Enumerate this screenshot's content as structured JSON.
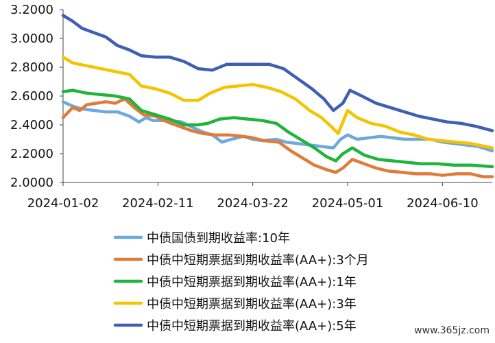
{
  "chart_data": {
    "type": "line",
    "ylim": [
      2.0,
      3.2
    ],
    "yticks": [
      "2.0000",
      "2.2000",
      "2.4000",
      "2.6000",
      "2.8000",
      "3.0000",
      "3.2000"
    ],
    "yticks_values": [
      2.0,
      2.2,
      2.4,
      2.6,
      2.8,
      3.0,
      3.2
    ],
    "x_range": [
      "2024-01-02",
      "2024-07-01"
    ],
    "xticks": [
      "2024-01-02",
      "2024-02-11",
      "2024-03-22",
      "2024-05-01",
      "2024-06-10"
    ],
    "grid": false,
    "legend_position": "bottom",
    "series": [
      {
        "name": "中债国债到期收益率:10年",
        "color": "#6fa8dc",
        "points": [
          [
            "2024-01-02",
            2.56
          ],
          [
            "2024-01-06",
            2.53
          ],
          [
            "2024-01-10",
            2.51
          ],
          [
            "2024-01-15",
            2.5
          ],
          [
            "2024-01-20",
            2.49
          ],
          [
            "2024-01-25",
            2.49
          ],
          [
            "2024-01-30",
            2.46
          ],
          [
            "2024-02-03",
            2.42
          ],
          [
            "2024-02-06",
            2.45
          ],
          [
            "2024-02-09",
            2.43
          ],
          [
            "2024-02-15",
            2.43
          ],
          [
            "2024-02-21",
            2.42
          ],
          [
            "2024-02-26",
            2.38
          ],
          [
            "2024-03-01",
            2.35
          ],
          [
            "2024-03-05",
            2.33
          ],
          [
            "2024-03-09",
            2.28
          ],
          [
            "2024-03-13",
            2.3
          ],
          [
            "2024-03-18",
            2.32
          ],
          [
            "2024-03-22",
            2.3
          ],
          [
            "2024-03-26",
            2.29
          ],
          [
            "2024-04-01",
            2.3
          ],
          [
            "2024-04-05",
            2.28
          ],
          [
            "2024-04-10",
            2.27
          ],
          [
            "2024-04-15",
            2.26
          ],
          [
            "2024-04-20",
            2.25
          ],
          [
            "2024-04-25",
            2.24
          ],
          [
            "2024-04-28",
            2.3
          ],
          [
            "2024-05-01",
            2.33
          ],
          [
            "2024-05-05",
            2.3
          ],
          [
            "2024-05-10",
            2.31
          ],
          [
            "2024-05-15",
            2.32
          ],
          [
            "2024-05-20",
            2.31
          ],
          [
            "2024-05-25",
            2.3
          ],
          [
            "2024-05-30",
            2.3
          ],
          [
            "2024-06-05",
            2.3
          ],
          [
            "2024-06-10",
            2.28
          ],
          [
            "2024-06-15",
            2.27
          ],
          [
            "2024-06-20",
            2.26
          ],
          [
            "2024-06-25",
            2.25
          ],
          [
            "2024-07-01",
            2.22
          ]
        ]
      },
      {
        "name": "中债中短期票据到期收益率(AA+):3个月",
        "color": "#e07b39",
        "points": [
          [
            "2024-01-02",
            2.45
          ],
          [
            "2024-01-06",
            2.52
          ],
          [
            "2024-01-09",
            2.5
          ],
          [
            "2024-01-12",
            2.54
          ],
          [
            "2024-01-16",
            2.55
          ],
          [
            "2024-01-20",
            2.56
          ],
          [
            "2024-01-24",
            2.55
          ],
          [
            "2024-01-28",
            2.58
          ],
          [
            "2024-02-01",
            2.52
          ],
          [
            "2024-02-05",
            2.47
          ],
          [
            "2024-02-10",
            2.46
          ],
          [
            "2024-02-15",
            2.42
          ],
          [
            "2024-02-20",
            2.39
          ],
          [
            "2024-02-25",
            2.36
          ],
          [
            "2024-03-01",
            2.34
          ],
          [
            "2024-03-06",
            2.33
          ],
          [
            "2024-03-12",
            2.33
          ],
          [
            "2024-03-18",
            2.32
          ],
          [
            "2024-03-22",
            2.31
          ],
          [
            "2024-03-27",
            2.29
          ],
          [
            "2024-04-02",
            2.28
          ],
          [
            "2024-04-07",
            2.22
          ],
          [
            "2024-04-12",
            2.17
          ],
          [
            "2024-04-17",
            2.12
          ],
          [
            "2024-04-22",
            2.09
          ],
          [
            "2024-04-26",
            2.07
          ],
          [
            "2024-04-29",
            2.1
          ],
          [
            "2024-05-03",
            2.16
          ],
          [
            "2024-05-08",
            2.13
          ],
          [
            "2024-05-13",
            2.1
          ],
          [
            "2024-05-18",
            2.08
          ],
          [
            "2024-05-24",
            2.07
          ],
          [
            "2024-05-30",
            2.06
          ],
          [
            "2024-06-05",
            2.06
          ],
          [
            "2024-06-10",
            2.05
          ],
          [
            "2024-06-16",
            2.06
          ],
          [
            "2024-06-22",
            2.06
          ],
          [
            "2024-06-27",
            2.04
          ],
          [
            "2024-07-01",
            2.04
          ]
        ]
      },
      {
        "name": "中债中短期票据到期收益率(AA+):1年",
        "color": "#1fb43c",
        "points": [
          [
            "2024-01-02",
            2.63
          ],
          [
            "2024-01-06",
            2.64
          ],
          [
            "2024-01-12",
            2.62
          ],
          [
            "2024-01-18",
            2.61
          ],
          [
            "2024-01-24",
            2.6
          ],
          [
            "2024-01-30",
            2.58
          ],
          [
            "2024-02-04",
            2.5
          ],
          [
            "2024-02-10",
            2.47
          ],
          [
            "2024-02-16",
            2.44
          ],
          [
            "2024-02-22",
            2.4
          ],
          [
            "2024-02-28",
            2.4
          ],
          [
            "2024-03-03",
            2.41
          ],
          [
            "2024-03-08",
            2.44
          ],
          [
            "2024-03-14",
            2.45
          ],
          [
            "2024-03-20",
            2.44
          ],
          [
            "2024-03-26",
            2.43
          ],
          [
            "2024-04-01",
            2.41
          ],
          [
            "2024-04-06",
            2.35
          ],
          [
            "2024-04-12",
            2.29
          ],
          [
            "2024-04-17",
            2.24
          ],
          [
            "2024-04-22",
            2.18
          ],
          [
            "2024-04-26",
            2.15
          ],
          [
            "2024-04-29",
            2.2
          ],
          [
            "2024-05-03",
            2.24
          ],
          [
            "2024-05-08",
            2.19
          ],
          [
            "2024-05-14",
            2.16
          ],
          [
            "2024-05-20",
            2.15
          ],
          [
            "2024-05-26",
            2.14
          ],
          [
            "2024-06-01",
            2.13
          ],
          [
            "2024-06-08",
            2.13
          ],
          [
            "2024-06-15",
            2.12
          ],
          [
            "2024-06-22",
            2.12
          ],
          [
            "2024-07-01",
            2.11
          ]
        ]
      },
      {
        "name": "中债中短期票据到期收益率(AA+):3年",
        "color": "#f5c400",
        "points": [
          [
            "2024-01-02",
            2.87
          ],
          [
            "2024-01-06",
            2.83
          ],
          [
            "2024-01-12",
            2.81
          ],
          [
            "2024-01-18",
            2.79
          ],
          [
            "2024-01-24",
            2.77
          ],
          [
            "2024-01-30",
            2.75
          ],
          [
            "2024-02-04",
            2.67
          ],
          [
            "2024-02-10",
            2.65
          ],
          [
            "2024-02-16",
            2.62
          ],
          [
            "2024-02-22",
            2.57
          ],
          [
            "2024-02-28",
            2.57
          ],
          [
            "2024-03-04",
            2.62
          ],
          [
            "2024-03-10",
            2.66
          ],
          [
            "2024-03-16",
            2.67
          ],
          [
            "2024-03-22",
            2.68
          ],
          [
            "2024-03-28",
            2.66
          ],
          [
            "2024-04-03",
            2.63
          ],
          [
            "2024-04-09",
            2.58
          ],
          [
            "2024-04-15",
            2.5
          ],
          [
            "2024-04-20",
            2.45
          ],
          [
            "2024-04-24",
            2.39
          ],
          [
            "2024-04-27",
            2.34
          ],
          [
            "2024-05-01",
            2.5
          ],
          [
            "2024-05-05",
            2.45
          ],
          [
            "2024-05-11",
            2.41
          ],
          [
            "2024-05-17",
            2.39
          ],
          [
            "2024-05-23",
            2.35
          ],
          [
            "2024-05-29",
            2.33
          ],
          [
            "2024-06-04",
            2.3
          ],
          [
            "2024-06-10",
            2.29
          ],
          [
            "2024-06-16",
            2.28
          ],
          [
            "2024-06-22",
            2.27
          ],
          [
            "2024-06-28",
            2.25
          ],
          [
            "2024-07-01",
            2.24
          ]
        ]
      },
      {
        "name": "中债中短期票据到期收益率(AA+):5年",
        "color": "#3f5fb5",
        "points": [
          [
            "2024-01-02",
            3.16
          ],
          [
            "2024-01-06",
            3.12
          ],
          [
            "2024-01-10",
            3.07
          ],
          [
            "2024-01-15",
            3.04
          ],
          [
            "2024-01-20",
            3.01
          ],
          [
            "2024-01-25",
            2.95
          ],
          [
            "2024-01-30",
            2.92
          ],
          [
            "2024-02-04",
            2.88
          ],
          [
            "2024-02-10",
            2.87
          ],
          [
            "2024-02-16",
            2.87
          ],
          [
            "2024-02-22",
            2.84
          ],
          [
            "2024-02-28",
            2.79
          ],
          [
            "2024-03-05",
            2.78
          ],
          [
            "2024-03-11",
            2.82
          ],
          [
            "2024-03-17",
            2.82
          ],
          [
            "2024-03-23",
            2.82
          ],
          [
            "2024-03-29",
            2.82
          ],
          [
            "2024-04-04",
            2.79
          ],
          [
            "2024-04-10",
            2.72
          ],
          [
            "2024-04-16",
            2.65
          ],
          [
            "2024-04-21",
            2.58
          ],
          [
            "2024-04-25",
            2.5
          ],
          [
            "2024-04-29",
            2.55
          ],
          [
            "2024-05-02",
            2.64
          ],
          [
            "2024-05-07",
            2.6
          ],
          [
            "2024-05-13",
            2.55
          ],
          [
            "2024-05-19",
            2.52
          ],
          [
            "2024-05-25",
            2.49
          ],
          [
            "2024-05-31",
            2.46
          ],
          [
            "2024-06-06",
            2.44
          ],
          [
            "2024-06-12",
            2.42
          ],
          [
            "2024-06-18",
            2.41
          ],
          [
            "2024-06-24",
            2.39
          ],
          [
            "2024-07-01",
            2.36
          ]
        ]
      }
    ]
  },
  "watermark": "www.365jz.com"
}
